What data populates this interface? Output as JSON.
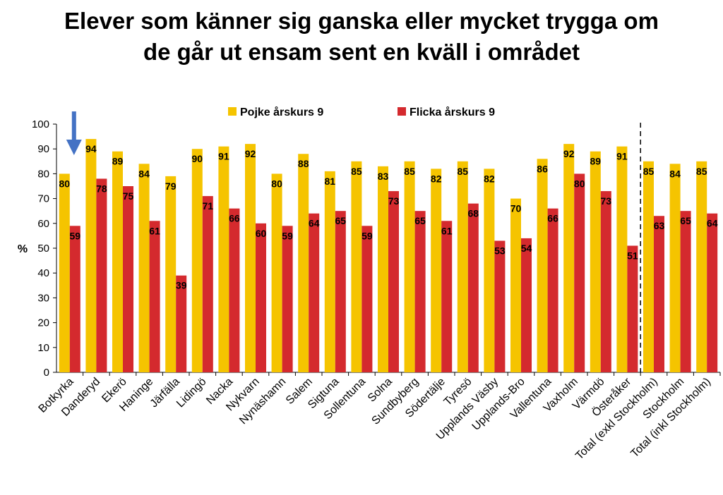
{
  "chart_data": {
    "type": "bar",
    "title_lines": [
      "Elever som känner sig ganska eller mycket trygga om",
      "de går ut ensam sent en kväll i området"
    ],
    "ylabel": "%",
    "ylim": [
      0,
      100
    ],
    "yticks": [
      0,
      10,
      20,
      30,
      40,
      50,
      60,
      70,
      80,
      90,
      100
    ],
    "legend_position": "top-center",
    "grid": false,
    "categories": [
      "Botkyrka",
      "Danderyd",
      "Ekerö",
      "Haninge",
      "Järfälla",
      "Lidingö",
      "Nacka",
      "Nykvarn",
      "Nynäshamn",
      "Salem",
      "Sigtuna",
      "Sollentuna",
      "Solna",
      "Sundbyberg",
      "Södertälje",
      "Tyresö",
      "Upplands Väsby",
      "Upplands-Bro",
      "Vallentuna",
      "Vaxholm",
      "Värmdö",
      "Österåker",
      "Total (exkl Stockholm)",
      "Stockholm",
      "Total (inkl Stockholm)"
    ],
    "series": [
      {
        "name": "Pojke årskurs 9",
        "color": "#F5C400",
        "values": [
          80,
          94,
          89,
          84,
          79,
          90,
          91,
          92,
          80,
          88,
          81,
          85,
          83,
          85,
          82,
          85,
          82,
          70,
          86,
          92,
          89,
          91,
          85,
          84,
          85
        ]
      },
      {
        "name": "Flicka årskurs 9",
        "color": "#D42A2E",
        "values": [
          59,
          78,
          75,
          61,
          39,
          71,
          66,
          60,
          59,
          64,
          65,
          59,
          73,
          65,
          61,
          68,
          53,
          54,
          66,
          80,
          73,
          51,
          63,
          65,
          64
        ]
      }
    ],
    "divider_after_category": "Österåker",
    "highlighted_category": "Botkyrka",
    "arrow_color": "#4472C4"
  }
}
